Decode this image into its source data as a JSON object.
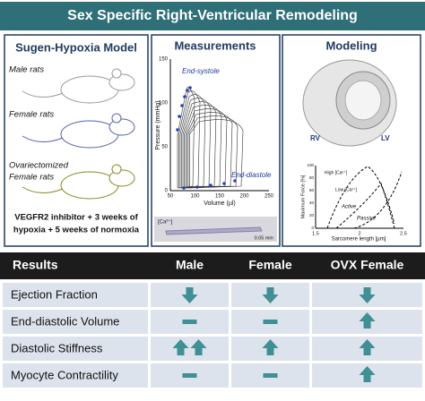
{
  "header": {
    "title": "Sex Specific Right-Ventricular Remodeling"
  },
  "panels": [
    {
      "title": "Sugen-Hypoxia Model",
      "groups": [
        [
          "Male rats"
        ],
        [
          "Female rats"
        ],
        [
          "Ovariectomized",
          "Female rats"
        ]
      ],
      "protocol": [
        "VEGFR2 inhibitor + 3 weeks of",
        "hypoxia + 5 weeks of normoxia"
      ]
    },
    {
      "title": "Measurements",
      "y_label": "Pressure (mmHg)",
      "x_label": "Volume (µl)",
      "yticks": [
        "0",
        "50",
        "100",
        "150"
      ],
      "xticks": [
        "50",
        "100",
        "150",
        "200",
        "250"
      ],
      "annotations": [
        "End-systole",
        "End-diastole"
      ],
      "cell_label": "[Ca²⁺]",
      "scale": "0.05 mm"
    },
    {
      "title": "Modeling",
      "labels": [
        "RV",
        "LV"
      ],
      "y_label": "Maximum Force [%]",
      "x_label": "Sarcomere length [µm]",
      "yticks": [
        "0",
        "20",
        "40",
        "60",
        "80",
        "100"
      ],
      "xticks": [
        "1.5",
        "2",
        "2.5"
      ],
      "annotations": [
        "High [Ca²⁺]",
        "Low [Ca²⁺]",
        "Active",
        "Passive"
      ]
    }
  ],
  "table": {
    "header": [
      "Results",
      "Male",
      "Female",
      "OVX Female"
    ],
    "rows": [
      {
        "label": "Ejection Fraction",
        "cells": [
          "down",
          "down",
          "down"
        ]
      },
      {
        "label": "End-diastolic Volume",
        "cells": [
          "none",
          "none",
          "up"
        ]
      },
      {
        "label": "Diastolic Stiffness",
        "cells": [
          "up-up",
          "up",
          "up"
        ]
      },
      {
        "label": "Myocyte Contractility",
        "cells": [
          "none",
          "none",
          "up"
        ]
      }
    ]
  }
}
